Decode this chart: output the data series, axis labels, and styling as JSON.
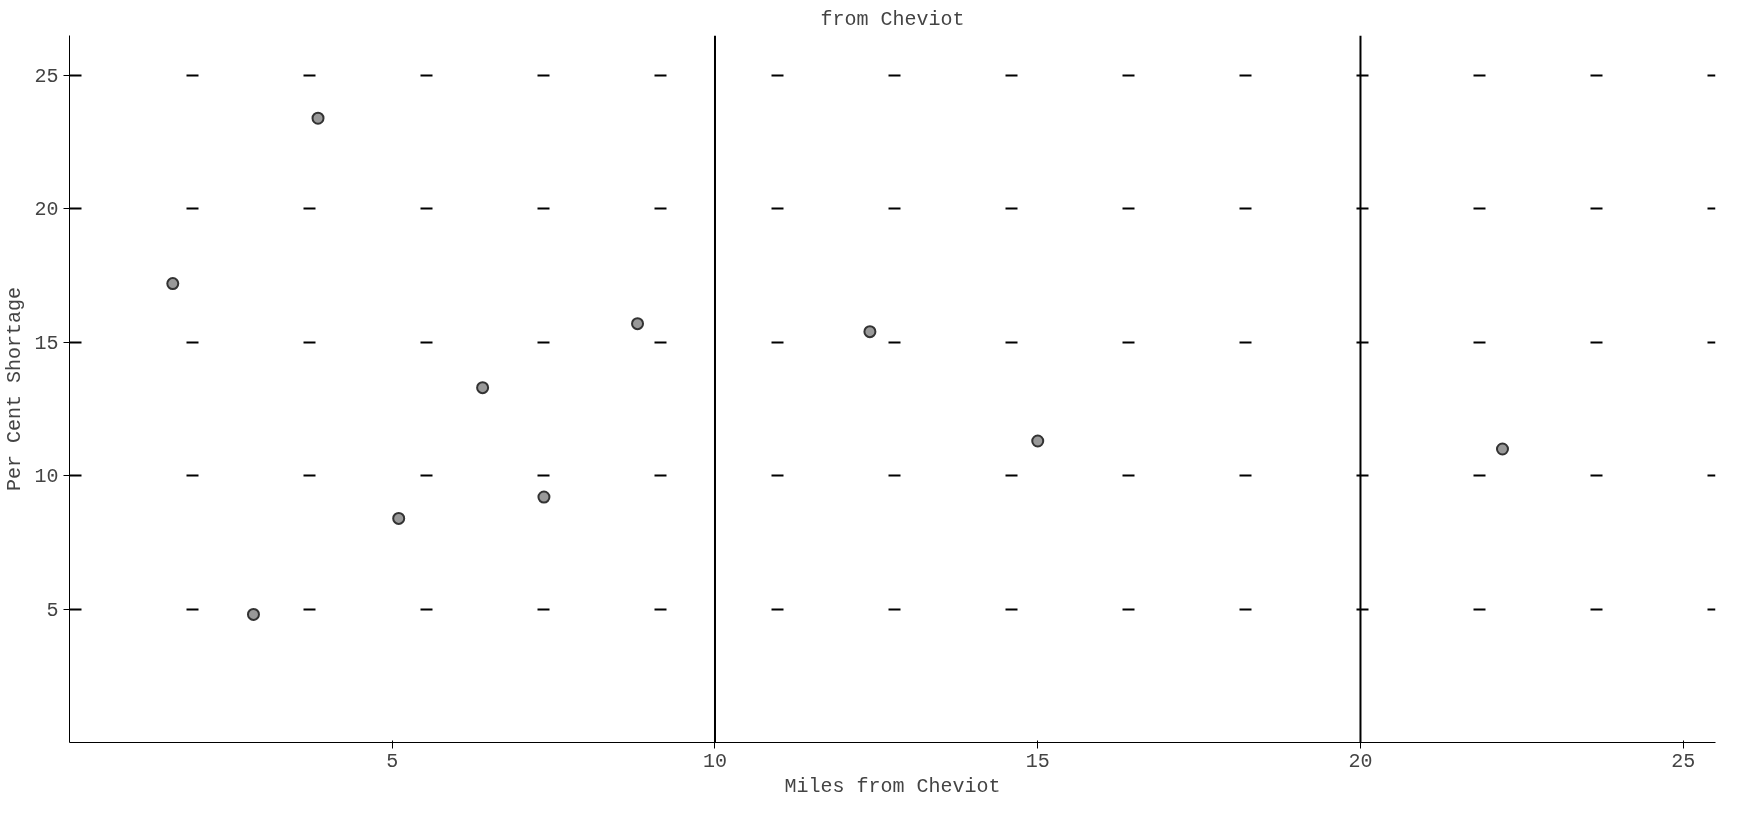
{
  "chart_data": {
    "type": "scatter",
    "title": "from Cheviot",
    "xlabel": "Miles from Cheviot",
    "ylabel": "Per Cent Shortage",
    "x": [
      1.6,
      2.85,
      3.85,
      5.1,
      6.4,
      7.35,
      8.8,
      12.4,
      15.0,
      22.2
    ],
    "series": [
      {
        "color": "#333333",
        "values": [
          17.2,
          4.8,
          23.4,
          8.4,
          13.3,
          9.2,
          15.7,
          15.4,
          11.3,
          11.0
        ]
      }
    ],
    "xlim": [
      0,
      25.5
    ],
    "ylim": [
      0,
      26.5
    ],
    "xticks": [
      5,
      10,
      15,
      20,
      25
    ],
    "yticks": [
      5,
      10,
      15,
      20,
      25
    ],
    "grid": "y",
    "marker": "circle",
    "ref_lines": [
      {
        "axis": "x",
        "value": 10,
        "label": null
      },
      {
        "axis": "x",
        "value": 20,
        "label": null
      }
    ]
  }
}
